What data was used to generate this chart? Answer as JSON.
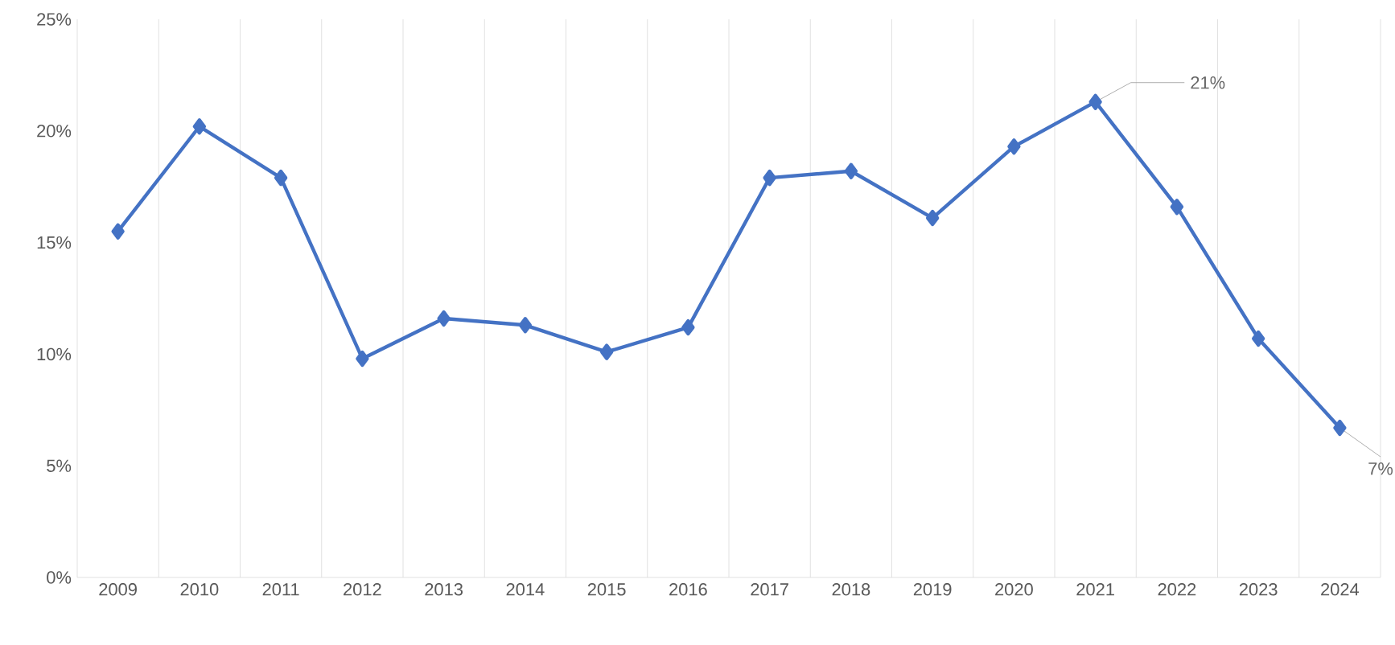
{
  "chart_data": {
    "type": "line",
    "categories": [
      "2009",
      "2010",
      "2011",
      "2012",
      "2013",
      "2014",
      "2015",
      "2016",
      "2017",
      "2018",
      "2019",
      "2020",
      "2021",
      "2022",
      "2023",
      "2024"
    ],
    "series": [
      {
        "color": "#4472c4",
        "values": [
          15.5,
          20.2,
          17.9,
          9.8,
          11.6,
          11.3,
          10.1,
          11.2,
          17.9,
          18.2,
          16.1,
          19.3,
          21.3,
          16.6,
          10.7,
          6.7
        ]
      }
    ],
    "ylim": [
      0,
      25
    ],
    "yticks": [
      {
        "value": 0,
        "label": "0%"
      },
      {
        "value": 5,
        "label": "5%"
      },
      {
        "value": 10,
        "label": "10%"
      },
      {
        "value": 15,
        "label": "15%"
      },
      {
        "value": 20,
        "label": "20%"
      },
      {
        "value": 25,
        "label": "25%"
      }
    ],
    "grid": "x",
    "marker": "diamond",
    "line_style": "solid",
    "annotations": [
      {
        "text": "21%",
        "x": "2021",
        "y": 21.3
      },
      {
        "text": "7%",
        "x": "2024",
        "y": 6.7
      }
    ]
  }
}
